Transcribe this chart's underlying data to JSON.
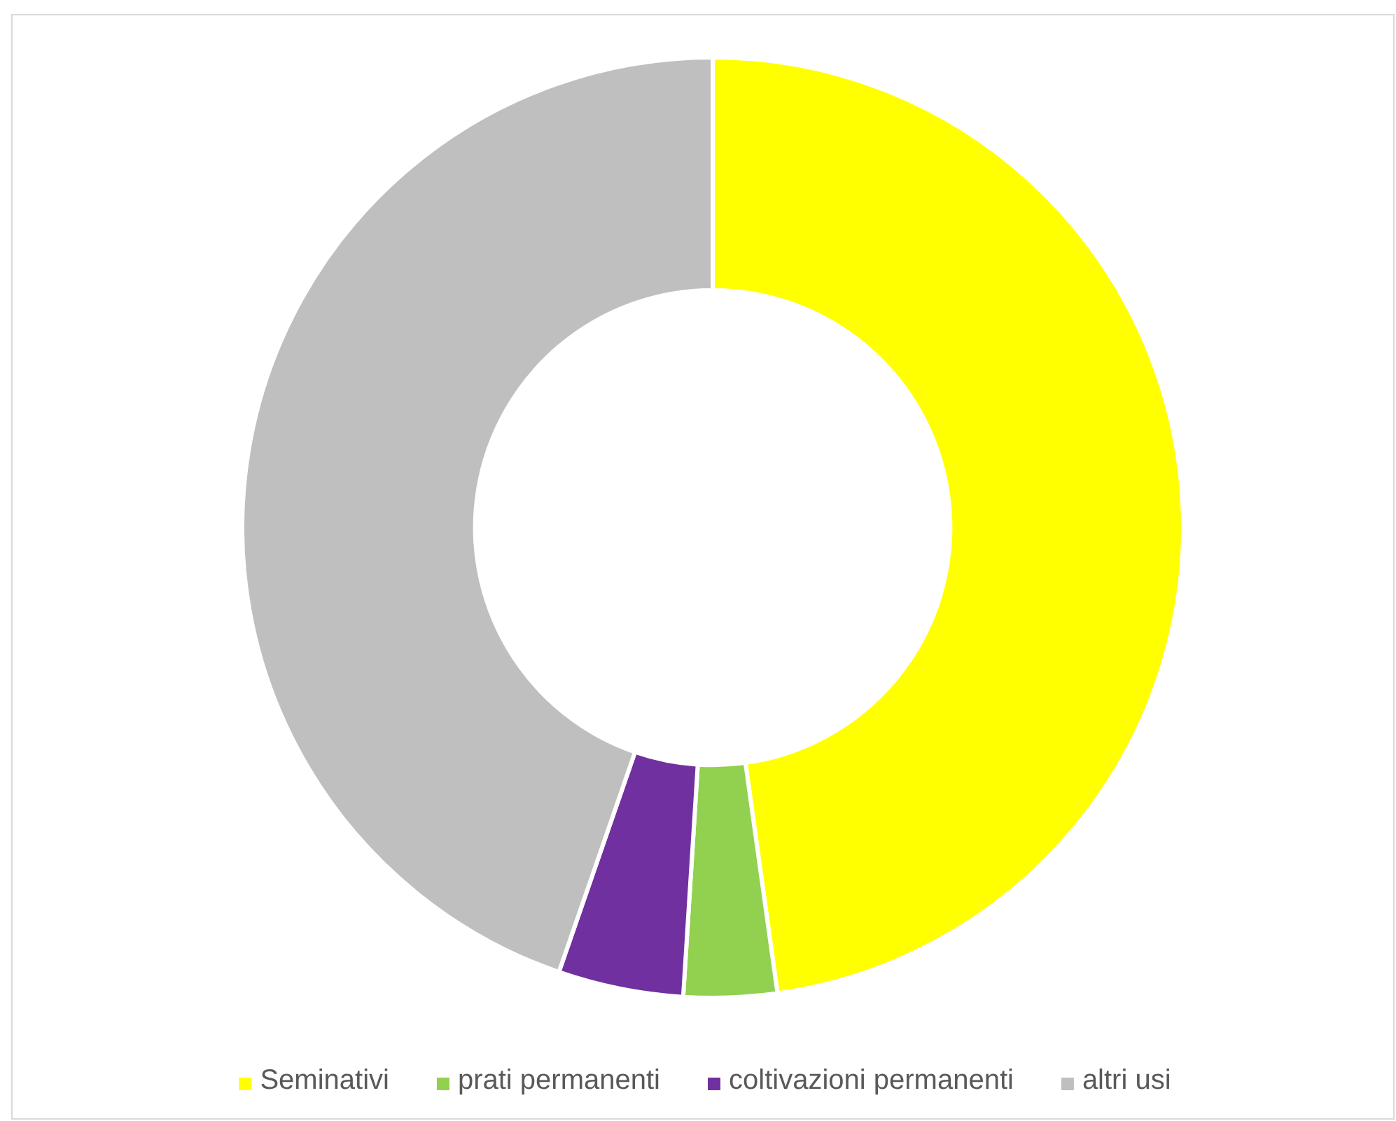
{
  "chart_data": {
    "type": "donut",
    "categories": [
      "Seminativi",
      "prati permanenti",
      "coltivazioni permanenti",
      "altri usi"
    ],
    "values": [
      47.8,
      3.2,
      4.3,
      44.7
    ],
    "colors": [
      "#ffff00",
      "#92d050",
      "#7030a0",
      "#bfbfbf"
    ],
    "legend": "bottom"
  }
}
